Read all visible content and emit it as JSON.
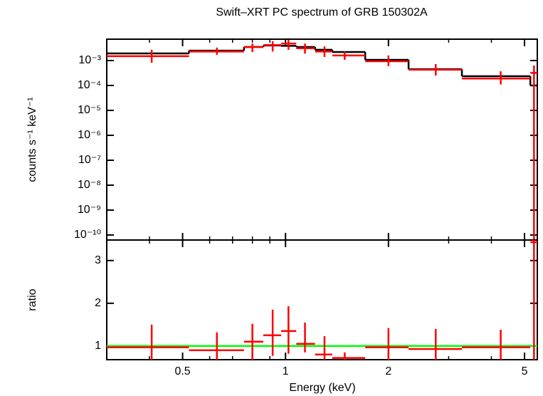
{
  "chart_data": [
    {
      "type": "spectrum",
      "title": "Swift–XRT PC spectrum of GRB 150302A",
      "ylabel": "counts s⁻¹ keV⁻¹",
      "log_x": true,
      "log_y": true,
      "xlim": [
        0.3,
        5.45
      ],
      "xticks": [
        0.5,
        1,
        2,
        5
      ],
      "x_minor_ticks": [
        0.3,
        0.4,
        0.6,
        0.7,
        0.8,
        0.9,
        3,
        4
      ],
      "ylim": [
        6.3e-11,
        0.0072
      ],
      "yticks": [
        {
          "value": 0.001,
          "label": "10⁻³"
        },
        {
          "value": 0.0001,
          "label": "10⁻⁴"
        },
        {
          "value": 1e-05,
          "label": "10⁻⁵"
        },
        {
          "value": 1e-06,
          "label": "10⁻⁶"
        },
        {
          "value": 1e-07,
          "label": "10⁻⁷"
        },
        {
          "value": 1e-08,
          "label": "10⁻⁸"
        },
        {
          "value": 1e-09,
          "label": "10⁻⁹"
        },
        {
          "value": 1e-10,
          "label": "10⁻¹⁰"
        }
      ],
      "bin_edges": [
        0.3,
        0.522,
        0.756,
        0.861,
        0.971,
        1.075,
        1.22,
        1.37,
        1.71,
        2.29,
        3.28,
        5.2,
        5.45
      ],
      "model": {
        "color": "#000000",
        "values": [
          0.00193,
          0.0025,
          0.0035,
          0.004,
          0.0039,
          0.0035,
          0.0027,
          0.0022,
          0.00107,
          0.00045,
          0.000235,
          0.0001
        ]
      },
      "data": {
        "color": "#ff0000",
        "x": [
          0.406,
          0.63,
          0.8,
          0.917,
          1.02,
          1.14,
          1.3,
          1.49,
          2.0,
          2.75,
          4.26,
          5.33
        ],
        "values": [
          0.0015,
          0.0023,
          0.0035,
          0.0042,
          0.0048,
          0.0031,
          0.0023,
          0.0016,
          0.00094,
          0.00043,
          0.00019,
          0.00032
        ],
        "errors": [
          [
            0.00082,
            0.0027
          ],
          [
            0.0017,
            0.0033
          ],
          [
            0.0022,
            0.0048
          ],
          [
            0.0023,
            0.006
          ],
          [
            0.0027,
            0.0067
          ],
          [
            0.0019,
            0.0048
          ],
          [
            0.0014,
            0.0037
          ],
          [
            0.00107,
            0.0023
          ],
          [
            0.00059,
            0.0016
          ],
          [
            0.00025,
            0.00072
          ],
          [
            0.00011,
            0.00037
          ],
          [
            1e-11,
            0.00063
          ]
        ]
      }
    },
    {
      "type": "ratio",
      "ylabel": "ratio",
      "xlabel": "Energy (keV)",
      "log_x": true,
      "xlim": [
        0.3,
        5.45
      ],
      "xticks": [
        0.5,
        1,
        2,
        5
      ],
      "x_minor_ticks": [
        0.3,
        0.4,
        0.6,
        0.7,
        0.8,
        0.9,
        3,
        4
      ],
      "ylim": [
        0.68,
        3.48
      ],
      "yticks": [
        1,
        2,
        3
      ],
      "reference": {
        "value": 1,
        "color": "#00ff00"
      },
      "bin_edges": [
        0.3,
        0.522,
        0.756,
        0.861,
        0.971,
        1.075,
        1.22,
        1.37,
        1.71,
        2.29,
        3.28,
        5.2,
        5.45
      ],
      "data": {
        "color": "#ff0000",
        "x": [
          0.406,
          0.63,
          0.8,
          0.917,
          1.02,
          1.14,
          1.3,
          1.49,
          2.0,
          2.75,
          4.26,
          5.33
        ],
        "values": [
          0.97,
          0.9,
          1.1,
          1.25,
          1.35,
          1.05,
          0.8,
          0.72,
          0.97,
          0.93,
          0.97,
          3.43
        ],
        "errors": [
          [
            0.45,
            1.5
          ],
          [
            0.5,
            1.32
          ],
          [
            0.6,
            1.52
          ],
          [
            0.77,
            1.85
          ],
          [
            0.82,
            1.93
          ],
          [
            0.85,
            1.55
          ],
          [
            0.45,
            1.23
          ],
          [
            0.6,
            0.85
          ],
          [
            0.55,
            1.42
          ],
          [
            0.5,
            1.4
          ],
          [
            0.6,
            1.38
          ],
          [
            0,
            5
          ]
        ]
      }
    }
  ]
}
